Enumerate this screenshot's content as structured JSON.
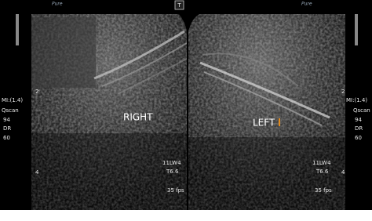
{
  "header": {
    "left_logo": "Pure",
    "right_logo": "Pure",
    "marker": "T"
  },
  "left_image": {
    "label": "RIGHT",
    "probe": "11LW4",
    "preset": "T6.6",
    "frame_rate": "35 fps"
  },
  "right_image": {
    "label": "LEFT",
    "probe": "11LW4",
    "preset": "T6.6",
    "frame_rate": "35 fps"
  },
  "left_sidebar": {
    "depth_marks": [
      "2",
      "4"
    ],
    "mi": "MI:(1.4)",
    "qscan_label": "Qscan",
    "qscan_value": "94",
    "dr_label": "DR",
    "dr_value": "60"
  },
  "right_sidebar": {
    "depth_marks": [
      "2",
      "4"
    ],
    "mi": "MI:(1.4)",
    "qscan_label": "Qscan",
    "qscan_value": "94",
    "dr_label": "DR",
    "dr_value": "60"
  }
}
